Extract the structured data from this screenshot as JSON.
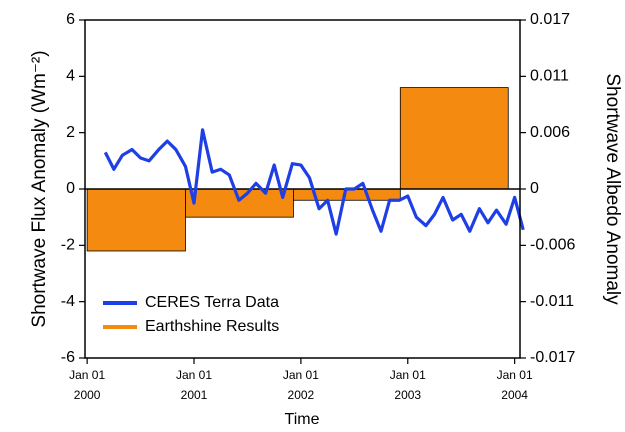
{
  "chart_data": {
    "type": "combo",
    "xlabel": "Time",
    "ylabel": "Shortwave Flux Anomaly (Wm⁻²)",
    "y2label": "Shortwave Albedo Anomaly",
    "xlim": [
      1999.98,
      2004.05
    ],
    "xticks": [
      {
        "value": 2000,
        "label": "Jan 01 2000"
      },
      {
        "value": 2001,
        "label": "Jan 01 2001"
      },
      {
        "value": 2002,
        "label": "Jan 01 2002"
      },
      {
        "value": 2003,
        "label": "Jan 01 2003"
      },
      {
        "value": 2004,
        "label": "Jan 01 2004"
      }
    ],
    "ylim": [
      -6,
      6
    ],
    "yticks": [
      -6,
      -4,
      -2,
      0,
      2,
      4,
      6
    ],
    "y2lim": [
      -0.017,
      0.017
    ],
    "y2ticks": [
      -0.017,
      {
        "value": -0.01133,
        "label": "-0.011"
      },
      {
        "value": -0.00567,
        "label": "-0.006"
      },
      0,
      {
        "value": 0.00567,
        "label": "0.006"
      },
      {
        "value": 0.01133,
        "label": "0.011"
      },
      0.017
    ],
    "legend": "lower left",
    "series": [
      {
        "name": "CERES Terra Data",
        "type": "line",
        "color": "#1f3fe6",
        "x": [
          2000.17,
          2000.25,
          2000.33,
          2000.42,
          2000.5,
          2000.58,
          2000.67,
          2000.75,
          2000.83,
          2000.92,
          2001.0,
          2001.08,
          2001.17,
          2001.25,
          2001.33,
          2001.42,
          2001.5,
          2001.58,
          2001.67,
          2001.75,
          2001.83,
          2001.92,
          2002.0,
          2002.08,
          2002.17,
          2002.25,
          2002.33,
          2002.42,
          2002.5,
          2002.58,
          2002.67,
          2002.75,
          2002.83,
          2002.92,
          2003.0,
          2003.08,
          2003.17,
          2003.25,
          2003.33,
          2003.42,
          2003.5,
          2003.58,
          2003.67,
          2003.75,
          2003.83,
          2003.92,
          2004.0,
          2004.08
        ],
        "values": [
          1.3,
          0.7,
          1.2,
          1.4,
          1.1,
          1.0,
          1.4,
          1.7,
          1.4,
          0.8,
          -0.5,
          2.1,
          0.6,
          0.7,
          0.5,
          -0.4,
          -0.15,
          0.2,
          -0.15,
          0.85,
          -0.3,
          0.9,
          0.85,
          0.4,
          -0.7,
          -0.4,
          -1.6,
          0,
          0,
          0.2,
          -0.75,
          -1.5,
          -0.4,
          -0.4,
          -0.25,
          -1.0,
          -1.3,
          -0.9,
          -0.3,
          -1.1,
          -0.9,
          -1.5,
          -0.7,
          -1.2,
          -0.75,
          -1.25,
          -0.3,
          -1.45
        ]
      },
      {
        "name": "Earthshine Results",
        "type": "bar",
        "color": "#f48b10",
        "bins": [
          2000,
          2000.92,
          2001.93,
          2002.93,
          2003.94
        ],
        "values": [
          -2.2,
          -1.0,
          -0.4,
          3.6
        ]
      }
    ]
  }
}
